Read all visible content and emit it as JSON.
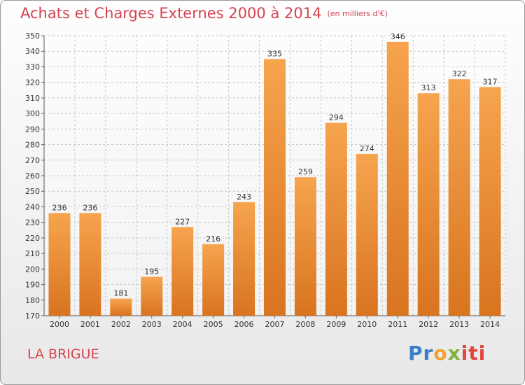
{
  "header": {
    "title": "Achats et Charges Externes 2000 à 2014",
    "subtitle": "(en milliers d'€)"
  },
  "footer": {
    "commune": "LA BRIGUE",
    "logo": {
      "p1": "Pr",
      "p2": "o",
      "p3": "x",
      "p4": "iti"
    }
  },
  "colors": {
    "title": "#d5434f",
    "bar_top": "#f6a44e",
    "bar_bottom": "#d9741f",
    "grid": "#c8c8c8"
  },
  "chart_data": {
    "type": "bar",
    "title": "Achats et Charges Externes 2000 à 2014",
    "categories": [
      "2000",
      "2001",
      "2002",
      "2003",
      "2004",
      "2005",
      "2006",
      "2007",
      "2008",
      "2009",
      "2010",
      "2011",
      "2012",
      "2013",
      "2014"
    ],
    "values": [
      236,
      236,
      181,
      195,
      227,
      216,
      243,
      335,
      259,
      294,
      274,
      346,
      313,
      322,
      317
    ],
    "ylim": [
      170,
      350
    ],
    "ytick_step": 10,
    "grid": true,
    "xlabel": "",
    "ylabel": ""
  }
}
